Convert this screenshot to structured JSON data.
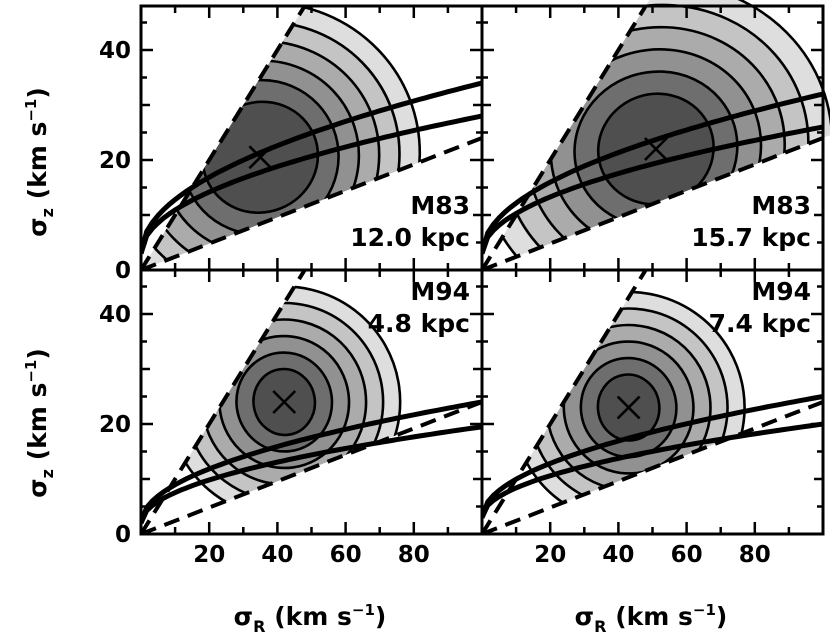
{
  "figure": {
    "ylabel": {
      "symbol": "σ",
      "sub": "z",
      "unit_open": " (km s",
      "sup": "−1",
      "unit_close": ")"
    },
    "xlabel": {
      "symbol": "σ",
      "sub": "R",
      "unit_open": " (km s",
      "sup": "−1",
      "unit_close": ")"
    },
    "colors": {
      "band1": "#dedede",
      "band2": "#c4c4c4",
      "band3": "#ababab",
      "band4": "#919191",
      "band5": "#6e6e6e",
      "band6": "#4f4f4f",
      "line": "#000000",
      "background": "#ffffff"
    }
  },
  "chart_data": [
    {
      "type": "contour",
      "galaxy": "M83",
      "radius": "12.0 kpc",
      "xlim": [
        0,
        100
      ],
      "ylim": [
        0,
        48
      ],
      "xticks": [
        "20",
        "40",
        "60",
        "80"
      ],
      "yticks": [
        "0",
        "20",
        "40"
      ],
      "best_fit": {
        "x": 35,
        "y": 20.5
      },
      "dashed_lines": [
        {
          "x": [
            0,
            48
          ],
          "y": [
            0,
            48
          ]
        },
        {
          "x": [
            0,
            100
          ],
          "y": [
            0,
            24
          ]
        }
      ],
      "solid_curves": [
        {
          "x": [
            0,
            100
          ],
          "y": [
            3,
            34
          ]
        },
        {
          "x": [
            0,
            100
          ],
          "y": [
            3,
            28
          ]
        }
      ],
      "contours": {
        "semi_major": [
          47,
          41,
          35,
          29,
          23,
          17
        ],
        "semi_minor": [
          28,
          24.5,
          21,
          17.5,
          14,
          10
        ],
        "tilt": 0.42
      }
    },
    {
      "type": "contour",
      "galaxy": "M83",
      "radius": "15.7 kpc",
      "xlim": [
        0,
        100
      ],
      "ylim": [
        0,
        48
      ],
      "xticks": [
        "20",
        "40",
        "60",
        "80"
      ],
      "yticks": [
        "0",
        "20",
        "40"
      ],
      "best_fit": {
        "x": 51,
        "y": 22
      },
      "dashed_lines": [
        {
          "x": [
            0,
            48
          ],
          "y": [
            0,
            48
          ]
        },
        {
          "x": [
            0,
            100
          ],
          "y": [
            0,
            24
          ]
        }
      ],
      "solid_curves": [
        {
          "x": [
            0,
            100
          ],
          "y": [
            3,
            32
          ]
        },
        {
          "x": [
            0,
            100
          ],
          "y": [
            3,
            26
          ]
        }
      ],
      "contours": {
        "semi_major": [
          52,
          45,
          38,
          31,
          24,
          17
        ],
        "semi_minor": [
          30,
          26,
          22,
          18,
          14,
          10
        ],
        "tilt": 0.35
      }
    },
    {
      "type": "contour",
      "galaxy": "M94",
      "radius": "4.8 kpc",
      "xlim": [
        0,
        100
      ],
      "ylim": [
        0,
        48
      ],
      "xticks": [
        "20",
        "40",
        "60",
        "80"
      ],
      "yticks": [
        "0",
        "20",
        "40"
      ],
      "best_fit": {
        "x": 42,
        "y": 24
      },
      "dashed_lines": [
        {
          "x": [
            0,
            48
          ],
          "y": [
            0,
            48
          ]
        },
        {
          "x": [
            0,
            100
          ],
          "y": [
            0,
            24
          ]
        }
      ],
      "solid_curves": [
        {
          "x": [
            0,
            100
          ],
          "y": [
            2,
            24
          ]
        },
        {
          "x": [
            0,
            100
          ],
          "y": [
            2,
            19.5
          ]
        }
      ],
      "contours": {
        "semi_major": [
          34,
          29,
          24,
          19,
          14,
          9
        ],
        "semi_minor": [
          21,
          18,
          15,
          12,
          9,
          6
        ],
        "tilt": 0.15
      }
    },
    {
      "type": "contour",
      "galaxy": "M94",
      "radius": "7.4 kpc",
      "xlim": [
        0,
        100
      ],
      "ylim": [
        0,
        48
      ],
      "xticks": [
        "20",
        "40",
        "60",
        "80"
      ],
      "yticks": [
        "0",
        "20",
        "40"
      ],
      "best_fit": {
        "x": 43,
        "y": 23
      },
      "dashed_lines": [
        {
          "x": [
            0,
            48
          ],
          "y": [
            0,
            48
          ]
        },
        {
          "x": [
            0,
            100
          ],
          "y": [
            0,
            24
          ]
        }
      ],
      "solid_curves": [
        {
          "x": [
            0,
            100
          ],
          "y": [
            3,
            25
          ]
        },
        {
          "x": [
            0,
            100
          ],
          "y": [
            3,
            20
          ]
        }
      ],
      "contours": {
        "semi_major": [
          34,
          29,
          24,
          19,
          14,
          9
        ],
        "semi_minor": [
          21,
          18,
          15,
          12,
          9,
          6
        ],
        "tilt": 0.15
      }
    }
  ]
}
